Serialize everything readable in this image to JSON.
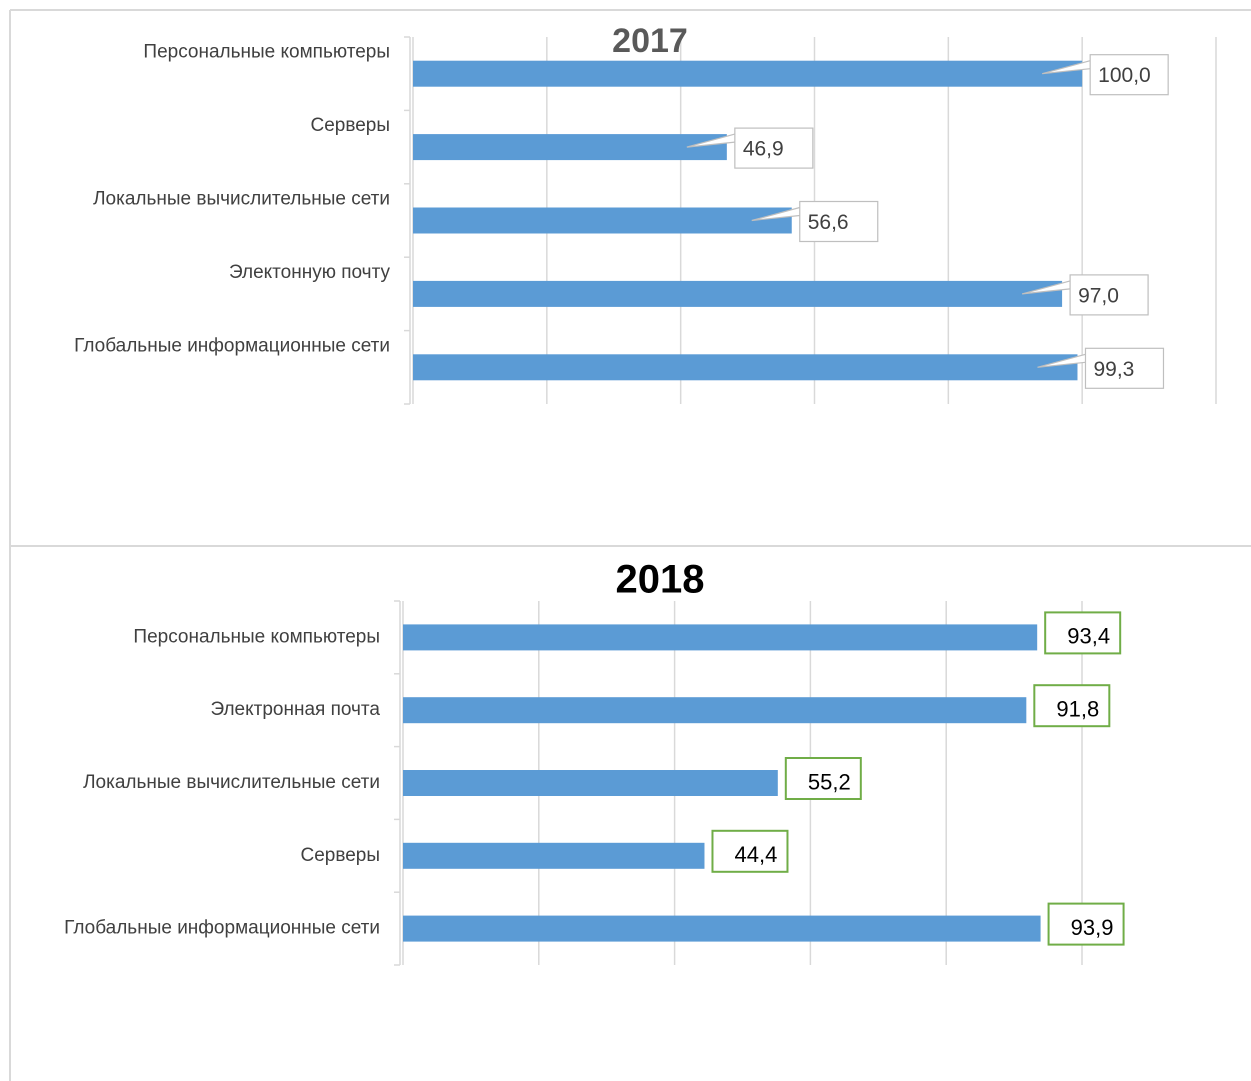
{
  "chart_data": [
    {
      "type": "bar",
      "orientation": "horizontal",
      "title": "2017",
      "categories": [
        "Персональные компьютеры",
        "Серверы",
        "Локальные вычислительные сети",
        "Электонную почту",
        "Глобальные информационные сети"
      ],
      "values": [
        100.0,
        46.9,
        56.6,
        97.0,
        99.3
      ],
      "value_labels": [
        "100,0",
        "46,9",
        "56,6",
        "97,0",
        "99,3"
      ],
      "color": "#5b9bd5",
      "label_border": "#bfbfbf",
      "title_color": "#595959",
      "xlim": [
        0,
        120
      ],
      "xticks": [
        0,
        20,
        40,
        60,
        80,
        100,
        120
      ],
      "grid": true
    },
    {
      "type": "bar",
      "orientation": "horizontal",
      "title": "2018",
      "categories": [
        "Персональные компьютеры",
        "Электронная почта",
        "Локальные вычислительные сети",
        "Серверы",
        "Глобальные информационные сети"
      ],
      "values": [
        93.4,
        91.8,
        55.2,
        44.4,
        93.9
      ],
      "value_labels": [
        "93,4",
        "91,8",
        "55,2",
        "44,4",
        "93,9"
      ],
      "color": "#5b9bd5",
      "label_border": "#70ad47",
      "title_color": "#000000",
      "xlim": [
        0,
        100
      ],
      "xticks": [
        0,
        20,
        40,
        60,
        80,
        100
      ],
      "grid": true
    }
  ]
}
